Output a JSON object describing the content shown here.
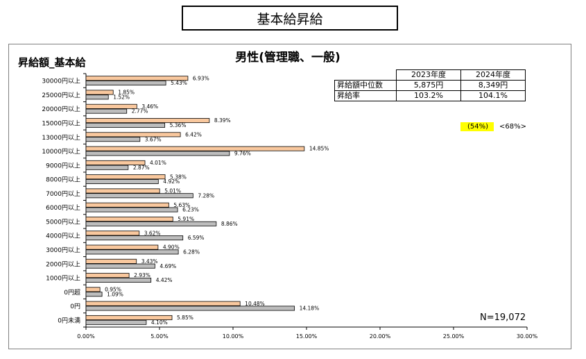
{
  "page_title": "基本給昇給",
  "chart_title": "男性(管理職、一般)",
  "corner_label": "昇給額_基本給",
  "summary_table": {
    "headers": [
      "2023年度",
      "2024年度"
    ],
    "rows": [
      {
        "label": "昇給額中位数",
        "values": [
          "5,875円",
          "8,349円"
        ]
      },
      {
        "label": "昇給率",
        "values": [
          "103.2%",
          "104.1%"
        ]
      }
    ]
  },
  "note_highlight": "(54%)",
  "note_plain": "<68%>",
  "n_label": "N=19,072",
  "colors": {
    "series_2024": "#f9c89e",
    "series_2023": "#bdbdbd",
    "highlight": "#ffff00"
  },
  "chart_data": {
    "type": "bar",
    "orientation": "horizontal",
    "title": "男性(管理職、一般)",
    "categories": [
      "30000円以上",
      "25000円以上",
      "20000円以上",
      "15000円以上",
      "13000円以上",
      "10000円以上",
      "9000円以上",
      "8000円以上",
      "7000円以上",
      "6000円以上",
      "5000円以上",
      "4000円以上",
      "3000円以上",
      "2000円以上",
      "1000円以上",
      "0円超",
      "0円",
      "0円未満"
    ],
    "series": [
      {
        "values": [
          6.93,
          1.85,
          3.46,
          8.39,
          6.42,
          14.85,
          4.01,
          5.38,
          5.01,
          5.63,
          5.91,
          3.62,
          4.9,
          3.43,
          2.93,
          0.95,
          10.48,
          5.85
        ],
        "labels": [
          "6.93%",
          "1.85%",
          "3.46%",
          "8.39%",
          "6.42%",
          "14.85%",
          "4.01%",
          "5.38%",
          "5.01%",
          "5.63%",
          "5.91%",
          "3.62%",
          "4.90%",
          "3.43%",
          "2.93%",
          "0.95%",
          "10.48%",
          "5.85%"
        ]
      },
      {
        "values": [
          5.43,
          1.52,
          2.77,
          5.36,
          3.67,
          9.76,
          2.87,
          4.92,
          7.28,
          6.23,
          8.86,
          6.59,
          6.28,
          4.69,
          4.42,
          1.09,
          14.18,
          4.1
        ],
        "labels": [
          "5.43%",
          "1.52%",
          "2.77%",
          "5.36%",
          "3.67%",
          "9.76%",
          "2.87%",
          "4.92%",
          "7.28%",
          "6.23%",
          "8.86%",
          "6.59%",
          "6.28%",
          "4.69%",
          "4.42%",
          "1.09%",
          "14.18%",
          "4.10%"
        ]
      }
    ],
    "xlim": [
      0,
      30
    ],
    "xticks": [
      "0.00%",
      "5.00%",
      "10.00%",
      "15.00%",
      "20.00%",
      "25.00%",
      "30.00%"
    ],
    "grid": false,
    "legend": "none"
  }
}
